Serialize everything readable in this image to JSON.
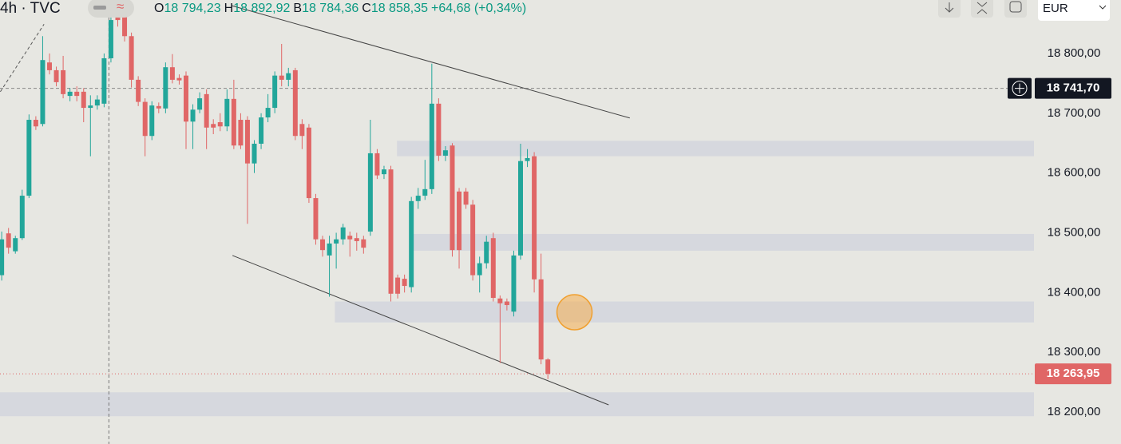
{
  "chart_data": {
    "type": "candlestick",
    "header": {
      "symbol": "4h · TVC",
      "ohlc": [
        {
          "key": "O",
          "value": "18 794,23"
        },
        {
          "key": "H",
          "value": "18 892,92"
        },
        {
          "key": "B",
          "value": "18 784,36"
        },
        {
          "key": "C",
          "value": "18 858,35"
        }
      ],
      "change": "+64,68 (+0,34%)",
      "currency": "EUR"
    },
    "up_color": "#22a69a",
    "down_color": "#e06666",
    "xlim": [
      -0.25,
      151.2
    ],
    "ylim": [
      18146.5,
      18889.5
    ],
    "yticks": [
      {
        "value": 18200,
        "label": "18 200,00"
      },
      {
        "value": 18300,
        "label": "18 300,00"
      },
      {
        "value": 18400,
        "label": "18 400,00"
      },
      {
        "value": 18500,
        "label": "18 500,00"
      },
      {
        "value": 18600,
        "label": "18 600,00"
      },
      {
        "value": 18700,
        "label": "18 700,00"
      },
      {
        "value": 18800,
        "label": "18 800,00"
      }
    ],
    "grid": false,
    "candles": {
      "open": [
        18429,
        18499,
        18469,
        18491,
        18562,
        18689,
        18682,
        18785,
        18772,
        18772,
        18729,
        18736,
        18736,
        18709,
        18713,
        18716,
        18792,
        18863,
        18869,
        18829,
        18756,
        18719,
        18662,
        18712,
        18708,
        18777,
        18759,
        18763,
        18686,
        18706,
        18732,
        18682,
        18685,
        18678,
        18724,
        18689,
        18689,
        18616,
        18649,
        18693,
        18709,
        18763,
        18756,
        18772,
        18682,
        18676,
        18558,
        18489,
        18462,
        18482,
        18489,
        18495,
        18491,
        18489,
        18502,
        18633,
        18598,
        18606,
        18425,
        18423,
        18409,
        18553,
        18562,
        18573,
        18716,
        18629,
        18646,
        18569,
        18569,
        18547,
        18429,
        18449,
        18491,
        18390,
        18385,
        18368,
        18462,
        18620,
        18628,
        18422,
        18288
      ],
      "high": [
        18502,
        18508,
        18495,
        18572,
        18698,
        18695,
        18829,
        18800,
        18778,
        18796,
        18742,
        18745,
        18742,
        18730,
        18730,
        18800,
        18868,
        18875,
        18889,
        18835,
        18762,
        18725,
        18720,
        18718,
        18785,
        18799,
        18765,
        18770,
        18715,
        18735,
        18740,
        18690,
        18700,
        18740,
        18756,
        18700,
        18695,
        18655,
        18700,
        18732,
        18770,
        18816,
        18776,
        18776,
        18690,
        18682,
        18565,
        18495,
        18495,
        18500,
        18515,
        18502,
        18500,
        18495,
        18689,
        18640,
        18612,
        18612,
        18430,
        18430,
        18560,
        18575,
        18622,
        18783,
        18725,
        18645,
        18650,
        18575,
        18575,
        18555,
        18460,
        18495,
        18500,
        18395,
        18390,
        18470,
        18649,
        18640,
        18635,
        18465,
        18290
      ],
      "low": [
        18420,
        18465,
        18465,
        18488,
        18558,
        18672,
        18678,
        18765,
        18745,
        18725,
        18720,
        18720,
        18685,
        18628,
        18706,
        18710,
        18785,
        18845,
        18820,
        18743,
        18712,
        18628,
        18655,
        18700,
        18700,
        18750,
        18748,
        18640,
        18640,
        18700,
        18640,
        18665,
        18670,
        18670,
        18640,
        18640,
        18515,
        18600,
        18640,
        18685,
        18700,
        18745,
        18745,
        18655,
        18640,
        18550,
        18480,
        18460,
        18393,
        18440,
        18480,
        18460,
        18470,
        18465,
        18495,
        18590,
        18590,
        18385,
        18390,
        18400,
        18400,
        18540,
        18555,
        18565,
        18620,
        18620,
        18460,
        18440,
        18540,
        18420,
        18400,
        18440,
        18385,
        18282,
        18370,
        18360,
        18455,
        18610,
        18400,
        18280,
        18255
      ],
      "close": [
        18489,
        18475,
        18491,
        18562,
        18689,
        18678,
        18789,
        18772,
        18752,
        18732,
        18736,
        18729,
        18709,
        18713,
        18723,
        18792,
        18856,
        18856,
        18829,
        18756,
        18719,
        18662,
        18713,
        18708,
        18777,
        18756,
        18755,
        18686,
        18706,
        18725,
        18676,
        18676,
        18678,
        18724,
        18646,
        18646,
        18616,
        18649,
        18693,
        18709,
        18763,
        18756,
        18767,
        18662,
        18662,
        18558,
        18489,
        18471,
        18482,
        18489,
        18509,
        18489,
        18486,
        18475,
        18633,
        18596,
        18606,
        18398,
        18398,
        18411,
        18553,
        18562,
        18573,
        18716,
        18629,
        18638,
        18471,
        18471,
        18547,
        18429,
        18449,
        18485,
        18391,
        18382,
        18379,
        18462,
        18620,
        18625,
        18422,
        18288,
        18263.95
      ]
    },
    "zones": [
      {
        "start": 57.9,
        "from": 18654,
        "to": 18628
      },
      {
        "start": 60.2,
        "from": 18498,
        "to": 18470
      },
      {
        "start": 48.8,
        "from": 18385,
        "to": 18350
      },
      {
        "start": -0.25,
        "from": 18233,
        "to": 18193
      }
    ],
    "trendlines": [
      {
        "x": [
          33.7,
          92.0
        ],
        "y": [
          18880,
          18692
        ]
      },
      {
        "x": [
          33.8,
          88.9
        ],
        "y": [
          18462,
          18212
        ]
      }
    ],
    "dashed_line": {
      "x": [
        -0.2,
        6.2
      ],
      "y": [
        18736,
        18849
      ]
    },
    "marker": {
      "x": 83.9,
      "y": 18367
    },
    "crosshair": {
      "x": 15.7,
      "price": {
        "value": 18741.7,
        "label": "18 741,70"
      }
    },
    "last_price": {
      "value": 18263.95,
      "label": "18 263,95"
    }
  }
}
